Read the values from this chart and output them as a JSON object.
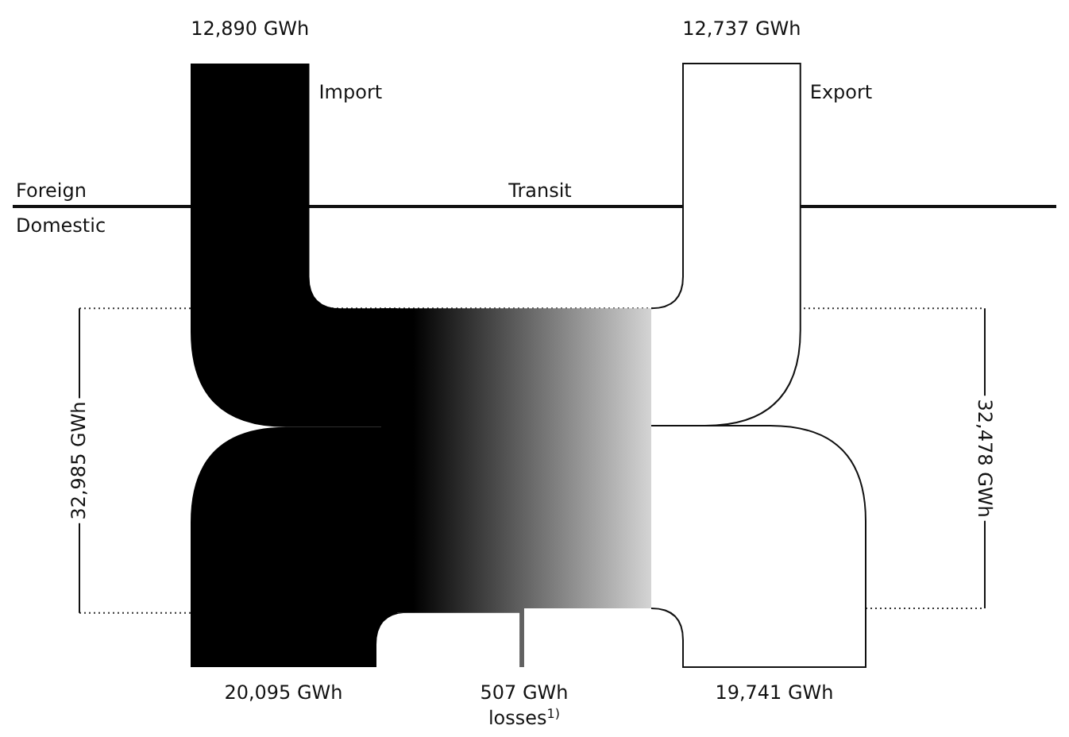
{
  "chart_data": {
    "type": "other",
    "categories": [
      "Import",
      "Export",
      "losses$^{1)}$"
    ],
    "values": [
      12890,
      12737,
      507
    ],
    "value_labels": [
      "12,890 GWh",
      "12,737 GWh",
      "507 GWh"
    ],
    "totals": [
      "32,985 GWh",
      "32,478 GWh"
    ],
    "annotations": [
      "Foreign",
      "Domestic",
      "Transit",
      "20,095 GWh",
      "19,741 GWh"
    ]
  }
}
